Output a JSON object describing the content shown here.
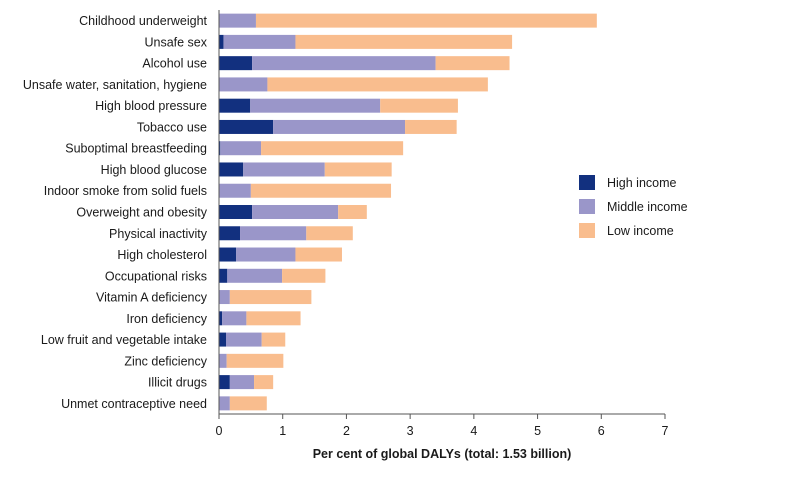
{
  "chart_data": {
    "type": "bar",
    "orientation": "horizontal",
    "stacked": true,
    "title": "",
    "xlabel": "Per cent of global DALYs (total: 1.53 billion)",
    "ylabel": "",
    "xlim": [
      0,
      7
    ],
    "xticks": [
      "0",
      "1",
      "2",
      "3",
      "4",
      "5",
      "6",
      "7"
    ],
    "grid": false,
    "legend_position": "right",
    "categories": [
      "Childhood underweight",
      "Unsafe sex",
      "Alcohol use",
      "Unsafe water, sanitation, hygiene",
      "High blood pressure",
      "Tobacco use",
      "Suboptimal breastfeeding",
      "High blood glucose",
      "Indoor smoke from solid fuels",
      "Overweight and obesity",
      "Physical inactivity",
      "High cholesterol",
      "Occupational risks",
      "Vitamin A deficiency",
      "Iron deficiency",
      "Low fruit and vegetable intake",
      "Zinc deficiency",
      "Illicit drugs",
      "Unmet contraceptive need"
    ],
    "series": [
      {
        "name": "High income",
        "color": "#12307f",
        "values": [
          0.0,
          0.07,
          0.52,
          0.0,
          0.49,
          0.85,
          0.02,
          0.38,
          0.0,
          0.52,
          0.33,
          0.27,
          0.13,
          0.0,
          0.05,
          0.11,
          0.0,
          0.17,
          0.0
        ]
      },
      {
        "name": "Middle income",
        "color": "#9a96c9",
        "values": [
          0.58,
          1.13,
          2.88,
          0.76,
          2.04,
          2.07,
          0.64,
          1.28,
          0.5,
          1.35,
          1.04,
          0.93,
          0.86,
          0.17,
          0.38,
          0.56,
          0.12,
          0.38,
          0.17
        ]
      },
      {
        "name": "Low income",
        "color": "#f9bd8e",
        "values": [
          5.35,
          3.4,
          1.16,
          3.46,
          1.22,
          0.81,
          2.23,
          1.05,
          2.2,
          0.45,
          0.73,
          0.73,
          0.68,
          1.28,
          0.85,
          0.37,
          0.89,
          0.3,
          0.58
        ]
      }
    ]
  }
}
